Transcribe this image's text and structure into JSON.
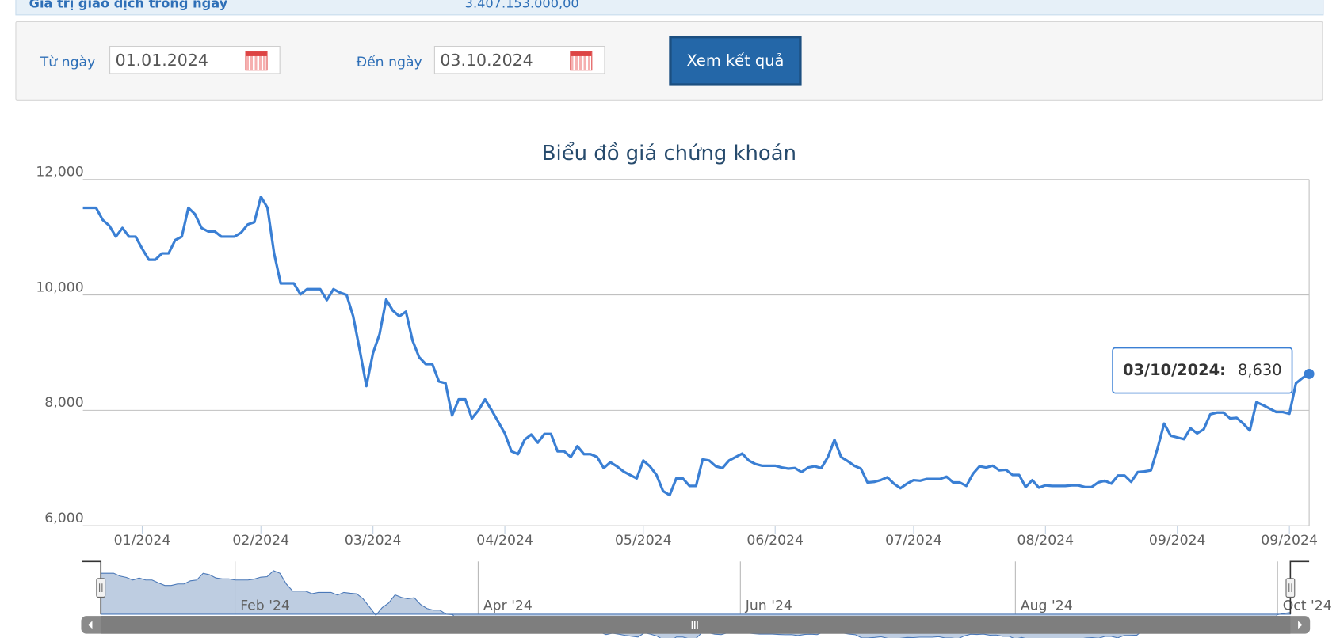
{
  "header": {
    "label": "Giá trị giao dịch trong ngày",
    "value": "3.407.153.000,00"
  },
  "form": {
    "from_label": "Từ ngày",
    "from_value": "01.01.2024",
    "to_label": "Đến ngày",
    "to_value": "03.10.2024",
    "button": "Xem kết quả"
  },
  "chart_data": {
    "type": "line",
    "title": "Biểu đồ giá chứng khoán",
    "series": [
      {
        "name": "Giá",
        "color": "#3a7fd4",
        "values": [
          11510,
          11510,
          11510,
          11300,
          11200,
          11010,
          11160,
          11010,
          11010,
          10800,
          10610,
          10610,
          10720,
          10720,
          10950,
          11010,
          11510,
          11400,
          11160,
          11100,
          11100,
          11010,
          11010,
          11010,
          11080,
          11220,
          11260,
          11700,
          11510,
          10720,
          10200,
          10200,
          10200,
          10010,
          10100,
          10100,
          10100,
          9910,
          10100,
          10040,
          10000,
          9630,
          9040,
          8420,
          8990,
          9320,
          9920,
          9730,
          9630,
          9710,
          9210,
          8920,
          8800,
          8800,
          8500,
          8470,
          7910,
          8190,
          8190,
          7860,
          8000,
          8190,
          8000,
          7800,
          7600,
          7290,
          7240,
          7490,
          7580,
          7440,
          7590,
          7590,
          7290,
          7290,
          7190,
          7380,
          7240,
          7240,
          7190,
          7000,
          7100,
          7030,
          6940,
          6880,
          6820,
          7130,
          7030,
          6880,
          6600,
          6530,
          6820,
          6820,
          6690,
          6690,
          7150,
          7130,
          7030,
          7000,
          7130,
          7190,
          7250,
          7130,
          7070,
          7040,
          7040,
          7040,
          7010,
          6990,
          7000,
          6930,
          7010,
          7030,
          7000,
          7190,
          7490,
          7190,
          7120,
          7040,
          6990,
          6750,
          6760,
          6790,
          6840,
          6730,
          6650,
          6730,
          6790,
          6780,
          6810,
          6810,
          6810,
          6850,
          6750,
          6750,
          6690,
          6900,
          7030,
          7010,
          7040,
          6960,
          6970,
          6880,
          6880,
          6670,
          6790,
          6660,
          6700,
          6690,
          6690,
          6690,
          6700,
          6700,
          6670,
          6670,
          6750,
          6780,
          6730,
          6870,
          6870,
          6760,
          6930,
          6940,
          6960,
          7340,
          7770,
          7560,
          7530,
          7500,
          7690,
          7600,
          7670,
          7930,
          7960,
          7960,
          7860,
          7870,
          7770,
          7650,
          8140,
          8090,
          8030,
          7970,
          7970,
          7940,
          8470,
          8560,
          8630
        ]
      }
    ],
    "xlim": [
      0,
      186
    ],
    "xticks": [
      {
        "value": 9,
        "label": "01/2024"
      },
      {
        "value": 27,
        "label": "02/2024"
      },
      {
        "value": 44,
        "label": "03/2024"
      },
      {
        "value": 64,
        "label": "04/2024"
      },
      {
        "value": 85,
        "label": "05/2024"
      },
      {
        "value": 105,
        "label": "06/2024"
      },
      {
        "value": 126,
        "label": "07/2024"
      },
      {
        "value": 146,
        "label": "08/2024"
      },
      {
        "value": 166,
        "label": "09/2024"
      },
      {
        "value": 183,
        "label": "09/2024"
      }
    ],
    "ylim": [
      6000,
      12000
    ],
    "yticks": [
      {
        "value": 6000,
        "label": "6,000"
      },
      {
        "value": 8000,
        "label": "8,000"
      },
      {
        "value": 10000,
        "label": "10,000"
      },
      {
        "value": 12000,
        "label": "12,000"
      }
    ],
    "grid": true,
    "tooltip": {
      "label": "03/10/2024:",
      "value_label": "8,630"
    },
    "navigator": {
      "fill": "#b3c4dc",
      "xticks": [
        {
          "value": 21,
          "label": "Feb '24"
        },
        {
          "value": 59,
          "label": "Apr '24"
        },
        {
          "value": 100,
          "label": "Jun '24"
        },
        {
          "value": 143,
          "label": "Aug '24"
        },
        {
          "value": 184,
          "label": "Oct '24"
        }
      ]
    }
  }
}
